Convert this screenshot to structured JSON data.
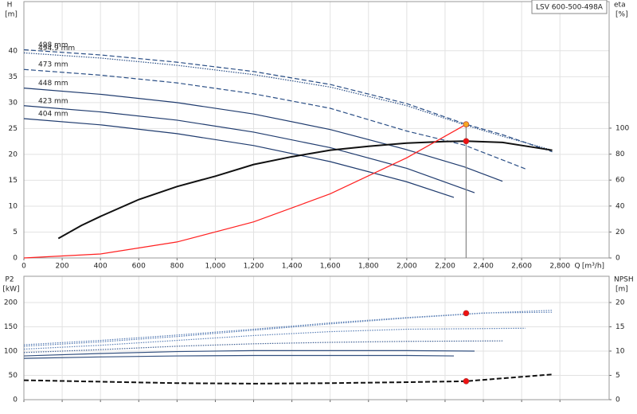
{
  "chart_data": [
    {
      "type": "line",
      "title": "LSV 600-500-498A",
      "xlabel": "Q",
      "xunit": "[m³/h]",
      "ylabel": "H",
      "yunit": "[m]",
      "y2label": "eta",
      "y2unit": "[%]",
      "grid": true,
      "show_xtick_labels": true,
      "xlim": [
        0,
        3057
      ],
      "ylim": [
        0,
        49.5
      ],
      "y2lim": [
        0,
        197.5
      ],
      "xticks": [
        0,
        200,
        400,
        600,
        800,
        {
          "value": 1000,
          "label": "1,000"
        },
        {
          "value": 1200,
          "label": "1,200"
        },
        {
          "value": 1400,
          "label": "1,400"
        },
        {
          "value": 1600,
          "label": "1,600"
        },
        {
          "value": 1800,
          "label": "1,800"
        },
        {
          "value": 2000,
          "label": "2,000"
        },
        {
          "value": 2200,
          "label": "2,200"
        },
        {
          "value": 2400,
          "label": "2,400"
        },
        {
          "value": 2600,
          "label": "2,600"
        },
        {
          "value": 2800,
          "label": "2,800"
        }
      ],
      "yticks": [
        0,
        5,
        10,
        15,
        20,
        25,
        30,
        35,
        40
      ],
      "y2ticks": [
        0,
        20,
        40,
        60,
        80,
        100
      ],
      "series": [
        {
          "name": "498 mm",
          "color": "#2b4f86",
          "dash": "dashed",
          "x": [
            0,
            400,
            800,
            1200,
            1600,
            2000,
            2310,
            2500,
            2760
          ],
          "values": [
            40.2,
            39.2,
            37.8,
            36,
            33.5,
            29.8,
            25.8,
            23.8,
            20.5
          ]
        },
        {
          "name": "494.9 mm",
          "color": "#2b4f86",
          "dash": "dotted",
          "x": [
            0,
            400,
            800,
            1200,
            1600,
            2000,
            2310,
            2500,
            2760
          ],
          "values": [
            39.6,
            38.6,
            37.2,
            35.4,
            33,
            29.4,
            25.6,
            23.5,
            20.8
          ]
        },
        {
          "name": "473 mm",
          "color": "#2b4f86",
          "dash": "dashed",
          "x": [
            0,
            400,
            800,
            1200,
            1600,
            2000,
            2300,
            2620
          ],
          "values": [
            36.4,
            35.3,
            33.8,
            31.7,
            28.9,
            24.5,
            21.8,
            17.2
          ]
        },
        {
          "name": "448 mm",
          "color": "#1f3b6e",
          "dash": "solid",
          "x": [
            0,
            400,
            800,
            1200,
            1600,
            2000,
            2300,
            2500
          ],
          "values": [
            32.8,
            31.6,
            30,
            27.8,
            24.8,
            20.9,
            17.6,
            14.8
          ]
        },
        {
          "name": "423 mm",
          "color": "#1f3b6e",
          "dash": "solid",
          "x": [
            0,
            400,
            800,
            1200,
            1600,
            2000,
            2354
          ],
          "values": [
            29.4,
            28.2,
            26.6,
            24.3,
            21.3,
            17.3,
            12.6
          ]
        },
        {
          "name": "404 mm",
          "color": "#1f3b6e",
          "dash": "solid",
          "x": [
            0,
            400,
            800,
            1200,
            1600,
            2000,
            2246
          ],
          "values": [
            26.9,
            25.7,
            24,
            21.7,
            18.6,
            14.7,
            11.7
          ]
        },
        {
          "color": "#111111",
          "dash": "solid",
          "axis": "y2",
          "width": 2,
          "x": [
            180,
            300,
            400,
            600,
            800,
            1000,
            1200,
            1400,
            1600,
            1800,
            2000,
            2200,
            2310,
            2500,
            2760
          ],
          "values": [
            15,
            25,
            32,
            45,
            55,
            63,
            72,
            78,
            83,
            86,
            88.5,
            89.7,
            90,
            89,
            83
          ]
        },
        {
          "color": "#ff2020",
          "dash": "solid",
          "x": [
            0,
            400,
            800,
            1200,
            1600,
            2000,
            2310
          ],
          "values": [
            0,
            0.77,
            3.09,
            6.96,
            12.38,
            19.34,
            25.8
          ]
        }
      ],
      "points": [
        {
          "x": 2310,
          "y": 25.8,
          "color": "#f5a623",
          "drop_line": true
        },
        {
          "x": 2310,
          "y": 90,
          "axis": "y2",
          "color": "#ee1111"
        }
      ]
    },
    {
      "type": "line",
      "ylabel": "P2",
      "yunit": "[kW]",
      "y2label": "NPSH",
      "y2unit": "[m]",
      "grid": true,
      "show_xtick_labels": false,
      "xlim": [
        0,
        3057
      ],
      "ylim": [
        0,
        254
      ],
      "y2lim": [
        0,
        25.4
      ],
      "xticks": [
        0,
        200,
        400,
        600,
        800,
        1000,
        1200,
        1400,
        1600,
        1800,
        2000,
        2200,
        2400,
        2600,
        2800
      ],
      "yticks": [
        0,
        50,
        100,
        150,
        200
      ],
      "y2ticks": [
        0,
        5,
        10,
        15,
        20
      ],
      "series": [
        {
          "color": "#5a7fb5",
          "dash": "dotted",
          "x": [
            0,
            400,
            800,
            1200,
            1600,
            2000,
            2400,
            2760
          ],
          "values": [
            113,
            122,
            133,
            145,
            158,
            169,
            178.5,
            180
          ]
        },
        {
          "color": "#5a7fb5",
          "dash": "dotted",
          "x": [
            0,
            400,
            800,
            1200,
            1600,
            2000,
            2400,
            2760
          ],
          "values": [
            110,
            119,
            130,
            143,
            156,
            168,
            178,
            184
          ]
        },
        {
          "color": "#5a7fb5",
          "dash": "dotted",
          "x": [
            0,
            400,
            800,
            1200,
            1600,
            2000,
            2620
          ],
          "values": [
            104,
            112,
            122,
            132,
            140,
            145,
            147
          ]
        },
        {
          "color": "#3f5f92",
          "dash": "dotted",
          "x": [
            0,
            400,
            800,
            1200,
            1600,
            2000,
            2500
          ],
          "values": [
            97,
            103,
            110,
            115,
            118,
            120,
            121
          ]
        },
        {
          "color": "#33507f",
          "dash": "solid",
          "x": [
            0,
            400,
            800,
            1200,
            1600,
            2000,
            2354
          ],
          "values": [
            90,
            95,
            99,
            101,
            101,
            101,
            100
          ]
        },
        {
          "color": "#33507f",
          "dash": "solid",
          "x": [
            0,
            400,
            800,
            1200,
            1600,
            2000,
            2246
          ],
          "values": [
            85,
            88,
            90,
            91,
            91,
            91,
            90
          ]
        },
        {
          "color": "#111111",
          "dash": "dashed",
          "axis": "y2",
          "width": 2,
          "x": [
            0,
            400,
            800,
            1200,
            1600,
            2000,
            2310,
            2760
          ],
          "values": [
            4,
            3.7,
            3.4,
            3.3,
            3.4,
            3.6,
            3.8,
            5.2
          ]
        }
      ],
      "points": [
        {
          "x": 2310,
          "y": 178,
          "color": "#ee1111"
        },
        {
          "x": 2310,
          "y": 3.8,
          "axis": "y2",
          "color": "#ee1111"
        }
      ]
    }
  ]
}
